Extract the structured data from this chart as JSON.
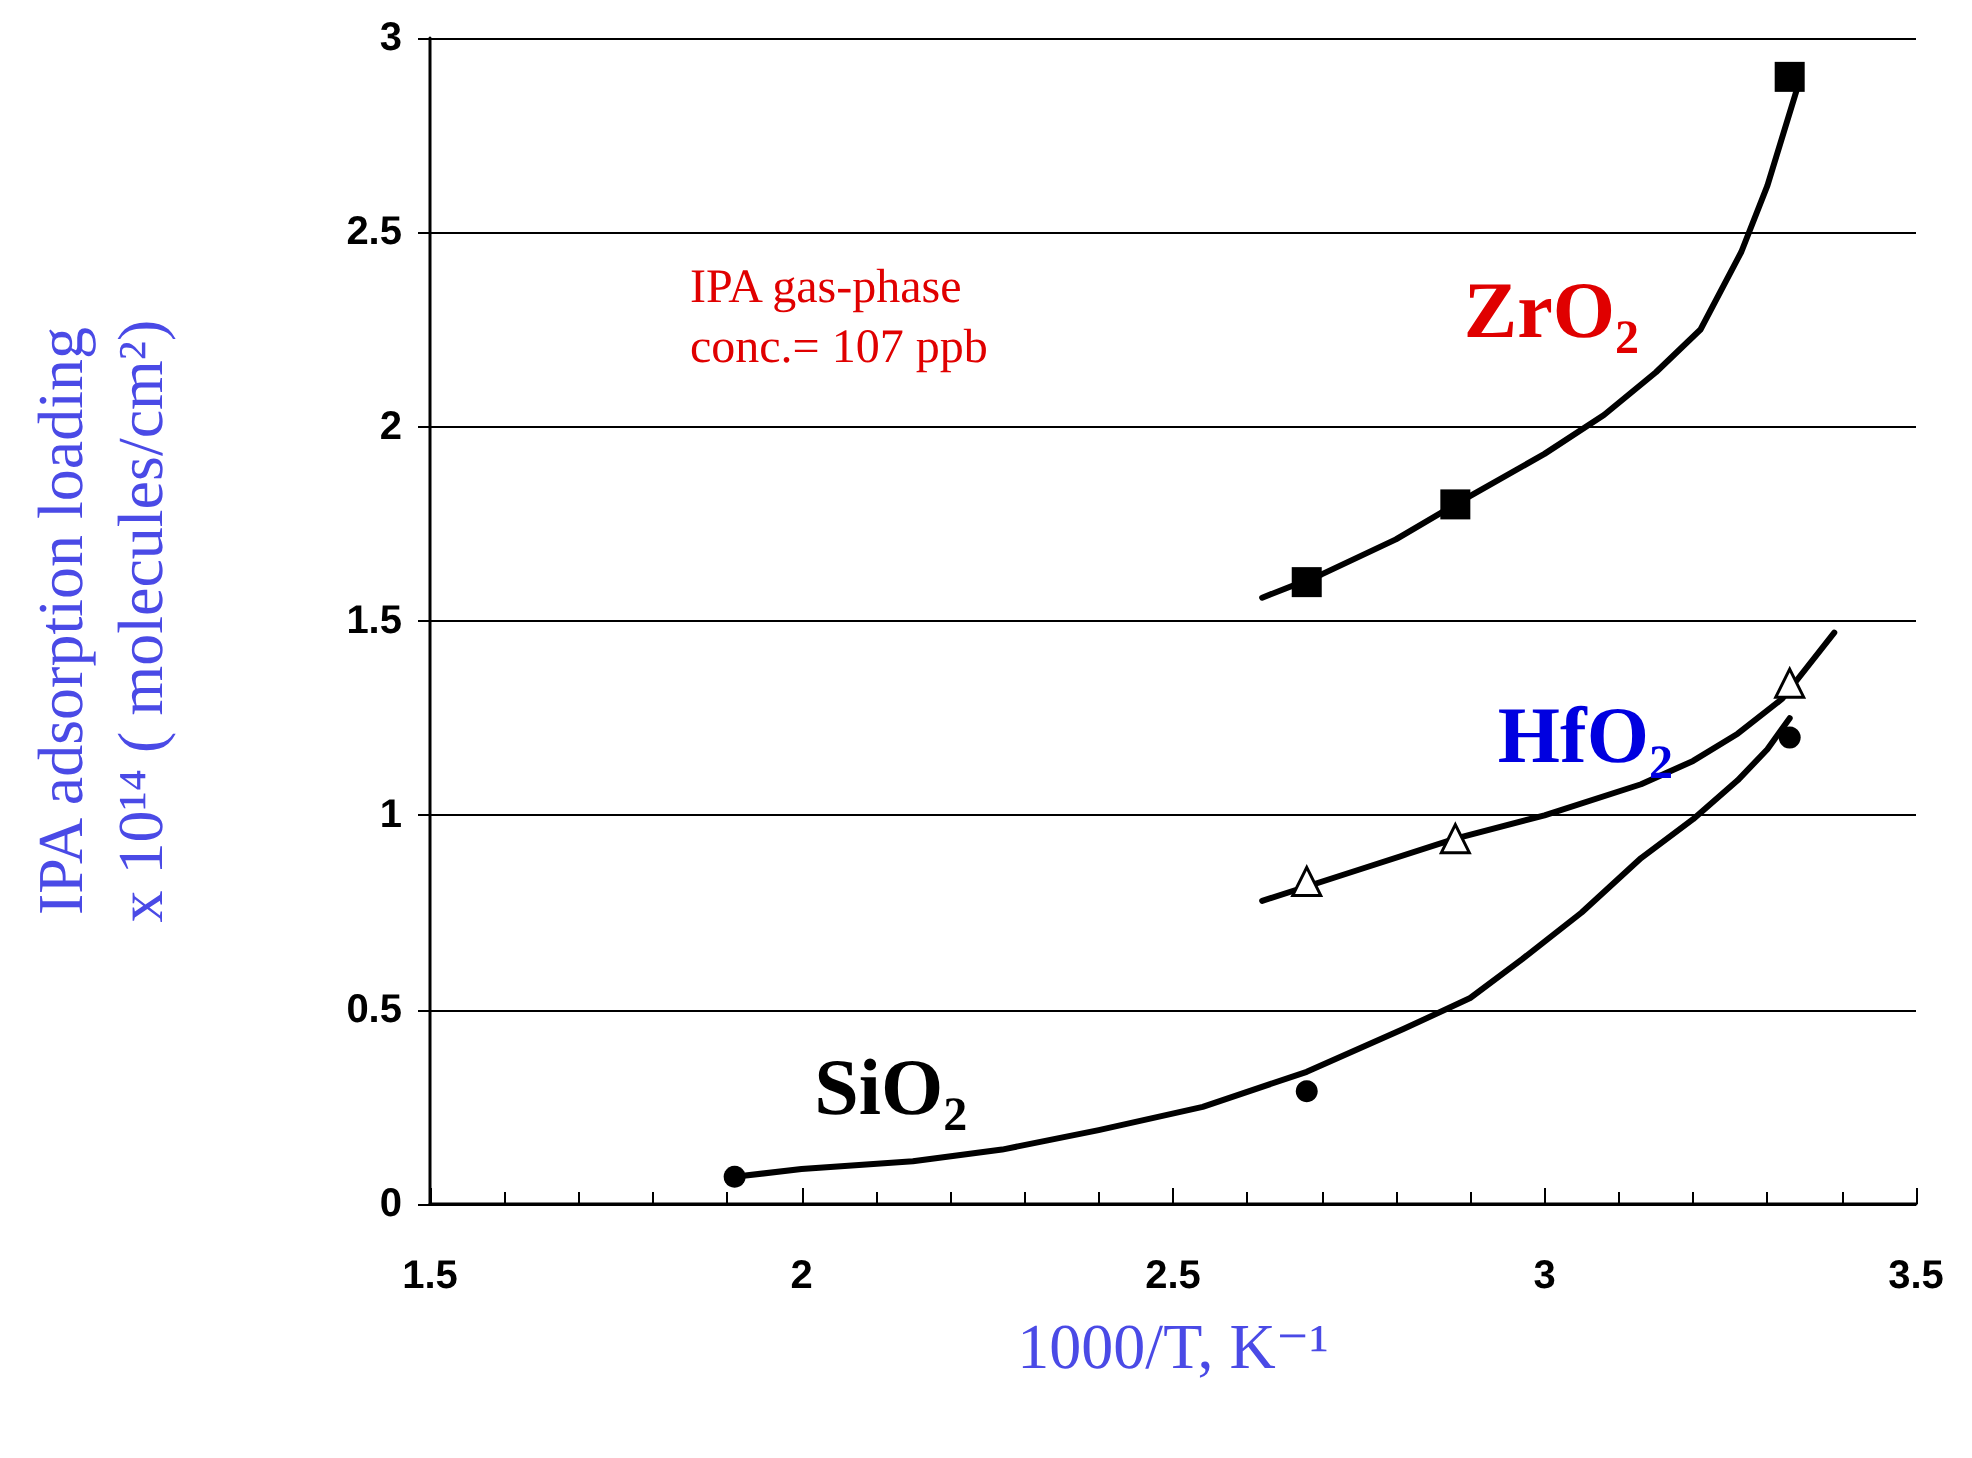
{
  "chart_data": {
    "type": "scatter",
    "xlabel": "1000/T, K⁻¹",
    "ylabel": "IPA adsorption loading\nx 10¹⁴ ( molecules/cm²)",
    "annotations": [
      "IPA gas-phase\nconc.= 107 ppb"
    ],
    "series": [
      {
        "name": "ZrO₂",
        "marker": "square",
        "color": "#000000",
        "x": [
          2.68,
          2.88,
          3.33
        ],
        "values": [
          1.6,
          1.8,
          2.9
        ]
      },
      {
        "name": "HfO₂",
        "marker": "triangle",
        "color": "#000000",
        "x": [
          2.68,
          2.88,
          3.33
        ],
        "values": [
          0.83,
          0.94,
          1.34
        ]
      },
      {
        "name": "SiO₂",
        "marker": "circle",
        "color": "#000000",
        "x": [
          1.91,
          2.68,
          3.33
        ],
        "values": [
          0.07,
          0.29,
          1.2
        ]
      },
      {
        "type": "line",
        "marker": "none",
        "color": "#000000",
        "x": [
          2.62,
          2.7,
          2.8,
          2.88,
          3.0,
          3.08,
          3.15,
          3.21,
          3.265,
          3.3,
          3.34
        ],
        "values": [
          1.56,
          1.62,
          1.71,
          1.8,
          1.93,
          2.03,
          2.14,
          2.25,
          2.45,
          2.62,
          2.87
        ]
      },
      {
        "type": "line",
        "marker": "none",
        "color": "#000000",
        "x": [
          2.62,
          2.75,
          2.88,
          3.0,
          3.13,
          3.2,
          3.26,
          3.32,
          3.39
        ],
        "values": [
          0.78,
          0.86,
          0.94,
          1.0,
          1.08,
          1.14,
          1.21,
          1.3,
          1.47
        ]
      },
      {
        "type": "line",
        "marker": "none",
        "color": "#000000",
        "x": [
          1.91,
          2.0,
          2.15,
          2.27,
          2.4,
          2.54,
          2.68,
          2.81,
          2.9,
          2.97,
          3.05,
          3.13,
          3.2,
          3.26,
          3.3,
          3.33
        ],
        "values": [
          0.07,
          0.09,
          0.11,
          0.14,
          0.19,
          0.25,
          0.34,
          0.45,
          0.53,
          0.63,
          0.75,
          0.89,
          0.99,
          1.09,
          1.17,
          1.25
        ]
      }
    ],
    "xlim": [
      1.5,
      3.5
    ],
    "xticks": [
      1.5,
      2,
      2.5,
      3,
      3.5
    ],
    "ylim": [
      0,
      3
    ],
    "yticks": [
      0,
      0.5,
      1,
      1.5,
      2,
      2.5,
      3
    ],
    "grid": "y"
  }
}
